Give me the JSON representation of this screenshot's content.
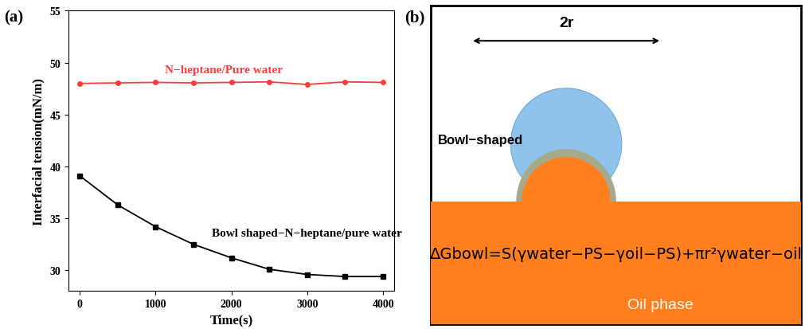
{
  "chart_data": {
    "type": "line",
    "panel_label": "(a)",
    "x_label": "Time(s)",
    "y_label": "Interfacial tension(mN/m)",
    "x": [
      0,
      500,
      1000,
      1500,
      2000,
      2500,
      3000,
      3500,
      4000
    ],
    "series": [
      {
        "name": "N−heptane/Pure water",
        "color": "#ff3b3b",
        "marker": "circle",
        "line_style": "solid",
        "values": [
          48.0,
          48.05,
          48.1,
          48.05,
          48.1,
          48.15,
          47.9,
          48.15,
          48.1
        ]
      },
      {
        "name": "Bowl shaped−N−heptane/pure water",
        "color": "#000000",
        "marker": "square",
        "line_style": "solid",
        "values": [
          39.1,
          36.3,
          34.2,
          32.5,
          31.2,
          30.1,
          29.6,
          29.4,
          29.4
        ]
      }
    ],
    "xlim": [
      -150,
      4150
    ],
    "xticks": [
      0,
      1000,
      2000,
      3000,
      4000
    ],
    "ylim": [
      28,
      55
    ],
    "yticks": [
      30,
      35,
      40,
      45,
      50,
      55
    ],
    "grid": false,
    "legend": false
  },
  "diagram": {
    "panel_label": "(b)",
    "width_label": "2r",
    "shape_label": "Bowl−shaped",
    "formula": "ΔGbowl=S(γwater−PS−γoil−PS)+πr²γwater−oil",
    "phase_label": "Oil phase"
  }
}
